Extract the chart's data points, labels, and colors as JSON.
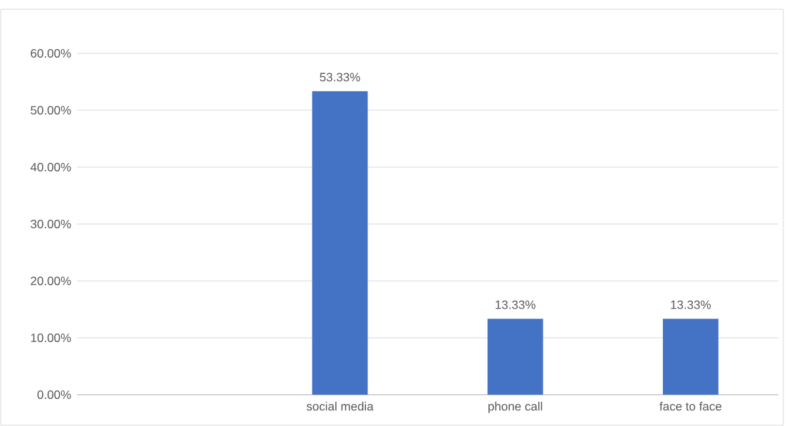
{
  "chart_data": {
    "type": "bar",
    "categories": [
      null,
      "social media",
      "phone call",
      "face to face"
    ],
    "values": [
      null,
      53.33,
      13.33,
      13.33
    ],
    "value_labels": [
      null,
      "53.33%",
      "13.33%",
      "13.33%"
    ],
    "color": "#4472c4",
    "ylim": [
      0,
      60
    ],
    "yticks": [
      {
        "value": 0,
        "label": "0.00%"
      },
      {
        "value": 10,
        "label": "10.00%"
      },
      {
        "value": 20,
        "label": "20.00%"
      },
      {
        "value": 30,
        "label": "30.00%"
      },
      {
        "value": 40,
        "label": "40.00%"
      },
      {
        "value": 50,
        "label": "50.00%"
      },
      {
        "value": 60,
        "label": "60.00%"
      }
    ],
    "grid": "y"
  }
}
